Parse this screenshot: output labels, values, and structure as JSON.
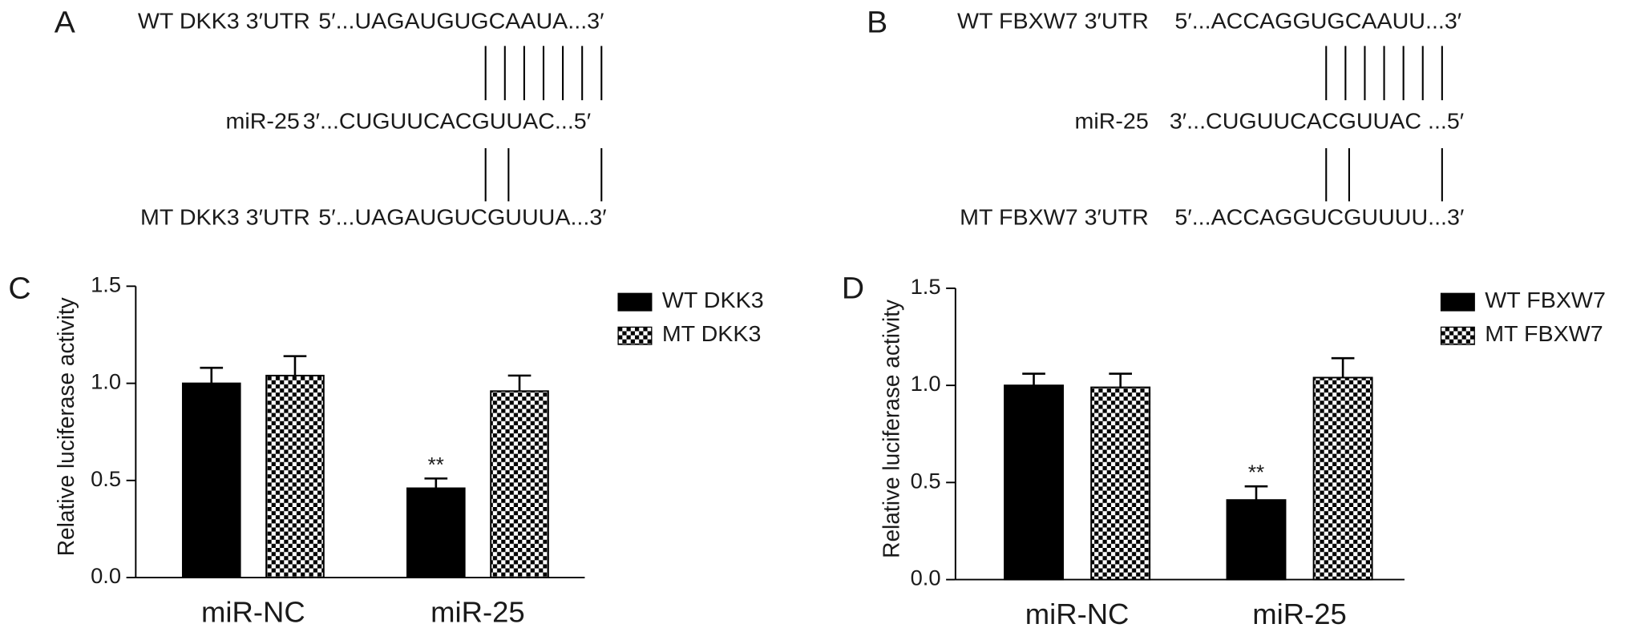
{
  "sequence_panels": [
    {
      "label": "A",
      "rows": [
        {
          "name": "WT DKK3 3′UTR",
          "sequence": "5′...UAGAUGUGCAAUA...3′"
        },
        {
          "name": "miR-25",
          "sequence": "3′...CUGUUCACGUUAC...5′"
        },
        {
          "name": "MT DKK3 3′UTR",
          "sequence": "5′...UAGAUGUCGUUUA...3′"
        }
      ]
    },
    {
      "label": "B",
      "rows": [
        {
          "name": "WT FBXW7 3′UTR",
          "sequence": "5′...ACCAGGUGCAAUU...3′"
        },
        {
          "name": "miR-25",
          "sequence": "3′...CUGUUCACGUUAC ...5′"
        },
        {
          "name": "MT FBXW7 3′UTR",
          "sequence": "5′...ACCAGGUCGUUUU...3′"
        }
      ]
    }
  ],
  "chart_data": [
    {
      "panel_label": "C",
      "type": "bar",
      "ylabel": "Relative luciferase activity",
      "categories": [
        "miR-NC",
        "miR-25"
      ],
      "series": [
        {
          "name": "WT DKK3",
          "color": "#000000",
          "pattern": "solid",
          "values": [
            1.0,
            0.46
          ],
          "errors": [
            0.08,
            0.05
          ]
        },
        {
          "name": "MT DKK3",
          "color": "#000000",
          "pattern": "checker",
          "values": [
            1.04,
            0.96
          ],
          "errors": [
            0.1,
            0.08
          ]
        }
      ],
      "annotations": [
        {
          "text": "**",
          "series": 0,
          "category": 1
        }
      ],
      "ylim": [
        0,
        1.5
      ],
      "yticks": [
        {
          "value": 0,
          "label": "0.0"
        },
        0.5,
        {
          "value": 1,
          "label": "1.0"
        },
        1.5
      ]
    },
    {
      "panel_label": "D",
      "type": "bar",
      "ylabel": "Relative luciferase activity",
      "categories": [
        "miR-NC",
        "miR-25"
      ],
      "series": [
        {
          "name": "WT FBXW7",
          "color": "#000000",
          "pattern": "solid",
          "values": [
            1.0,
            0.41
          ],
          "errors": [
            0.06,
            0.07
          ]
        },
        {
          "name": "MT FBXW7",
          "color": "#000000",
          "pattern": "checker",
          "values": [
            0.99,
            1.04
          ],
          "errors": [
            0.07,
            0.1
          ]
        }
      ],
      "annotations": [
        {
          "text": "**",
          "series": 0,
          "category": 1
        }
      ],
      "ylim": [
        0,
        1.5
      ],
      "yticks": [
        {
          "value": 0,
          "label": "0.0"
        },
        0.5,
        {
          "value": 1,
          "label": "1.0"
        },
        1.5
      ]
    }
  ]
}
